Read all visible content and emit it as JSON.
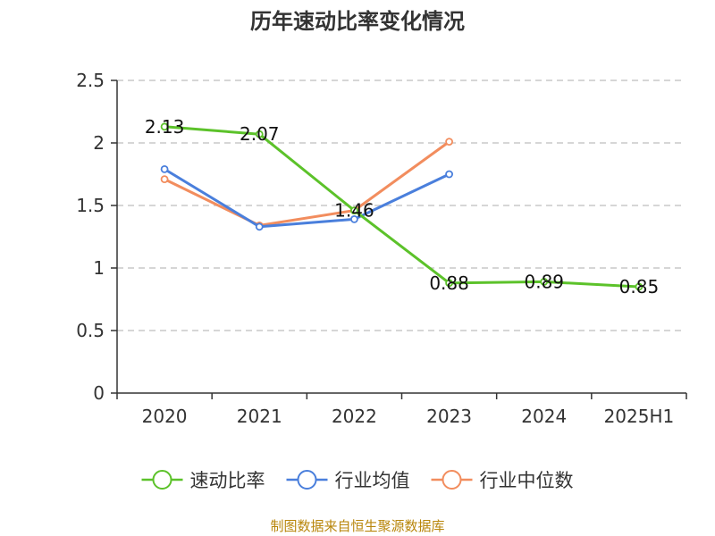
{
  "chart_data": {
    "type": "line",
    "title": "历年速动比率变化情况",
    "categories": [
      "2020",
      "2021",
      "2022",
      "2023",
      "2024",
      "2025H1"
    ],
    "ylim": [
      0,
      2.5
    ],
    "yticks": [
      "0",
      "0.5",
      "1",
      "1.5",
      "2",
      "2.5"
    ],
    "grid": true,
    "legend_position": "bottom",
    "series": [
      {
        "name": "速动比率",
        "color": "#5cc22a",
        "marker": "circle",
        "values": [
          2.13,
          2.07,
          1.46,
          0.88,
          0.89,
          0.85
        ],
        "labels": [
          "2.13",
          "2.07",
          "",
          "0.88",
          "0.89",
          "0.85"
        ]
      },
      {
        "name": "行业均值",
        "color": "#4a7fdc",
        "marker": "circle",
        "values": [
          1.79,
          1.33,
          1.39,
          1.75,
          null,
          null
        ]
      },
      {
        "name": "行业中位数",
        "color": "#f28d5e",
        "marker": "circle",
        "values": [
          1.71,
          1.34,
          1.46,
          2.01,
          null,
          null
        ],
        "labels": [
          "",
          "",
          "1.46",
          "",
          "",
          ""
        ]
      }
    ],
    "source": "制图数据来自恒生聚源数据库"
  }
}
